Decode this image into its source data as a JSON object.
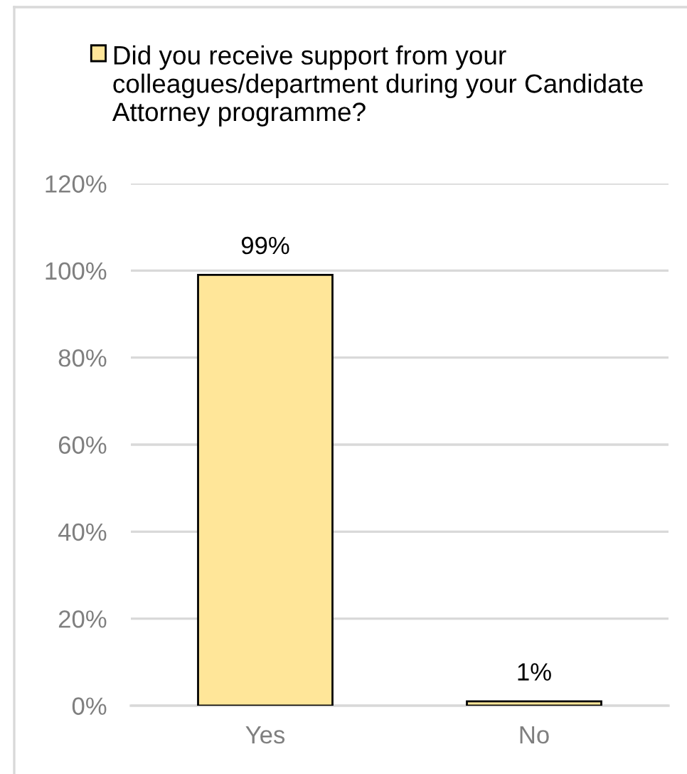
{
  "chart_data": {
    "type": "bar",
    "categories": [
      "Yes",
      "No"
    ],
    "series": [
      {
        "name": "Did you receive support from your colleagues/department during your Candidate Attorney programme?",
        "color": "#ffe699",
        "values": [
          99,
          1
        ],
        "value_labels": [
          "99%",
          "1%"
        ]
      }
    ],
    "ylim": [
      0,
      120
    ],
    "yticks": [
      {
        "value": 0,
        "label": "0%"
      },
      {
        "value": 20,
        "label": "20%"
      },
      {
        "value": 40,
        "label": "40%"
      },
      {
        "value": 60,
        "label": "60%"
      },
      {
        "value": 80,
        "label": "80%"
      },
      {
        "value": 100,
        "label": "100%"
      },
      {
        "value": 120,
        "label": "120%"
      }
    ],
    "grid": "y",
    "legend": "top"
  }
}
